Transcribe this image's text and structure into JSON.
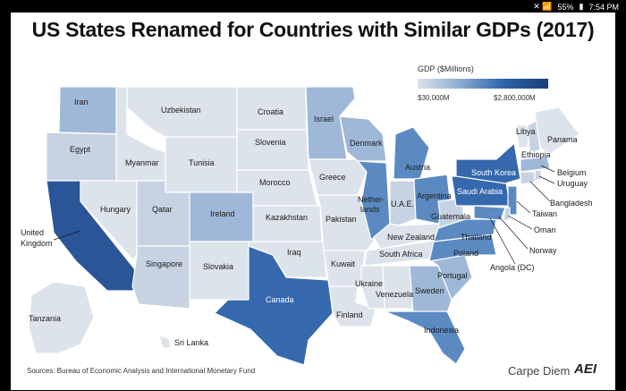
{
  "status": {
    "icons": "✕ 📶",
    "battery": "55%",
    "time": "7:54 PM"
  },
  "title": "US States Renamed for Countries with Similar GDPs (2017)",
  "legend": {
    "title": "GDP ($Millions)",
    "min": "$30,000M",
    "max": "$2,800,000M"
  },
  "colors": {
    "lightest": "#dde3ea",
    "light": "#c7d3e2",
    "mid": "#9fb8d8",
    "strong": "#5b8ac2",
    "dark": "#3568ad",
    "darkest": "#2a5598"
  },
  "labels": {
    "wa": "Iran",
    "or": "Egypt",
    "ca1": "United",
    "ca2": "Kingdom",
    "nv": "Hungary",
    "id": "Myanmar",
    "mt": "Uzbekistan",
    "wy": "Tunisia",
    "ut": "Qatar",
    "az": "Singapore",
    "co": "Ireland",
    "nm": "Slovakia",
    "nd": "Croatia",
    "sd": "Slovenia",
    "ne": "Morocco",
    "ks": "Kazakhstan",
    "ok": "Iraq",
    "tx": "Canada",
    "mn": "Israel",
    "ia": "Greece",
    "mo": "Pakistan",
    "ar": "Kuwait",
    "la": "Finland",
    "wi": "Denmark",
    "il1": "Nether-",
    "il2": "lands",
    "mi": "Austria",
    "in": "U.A.E.",
    "oh": "Argentina",
    "ky": "New Zealand",
    "tn": "South Africa",
    "ms": "Ukraine",
    "al": "Venezuela",
    "ga": "Sweden",
    "fl": "Indonesia",
    "sc": "Portugal",
    "nc": "Poland",
    "va": "Thailand",
    "wv": "Guatemala",
    "pa": "Saudi Arabia",
    "ny": "South Korea",
    "vt": "Libya",
    "nh": "Ethiopia",
    "me": "Panama",
    "ma": "Belgium",
    "ri": "Uruguay",
    "ct": "Bangladesh",
    "nj": "Taiwan",
    "de": "Oman",
    "md": "Norway",
    "dc": "Angola (DC)",
    "ak": "Tanzania",
    "hi": "Sri Lanka"
  },
  "source": "Sources: Bureau of Economic Analysis and International Monetary Fund",
  "brand": "Carpe Diem",
  "logo": "AEI"
}
